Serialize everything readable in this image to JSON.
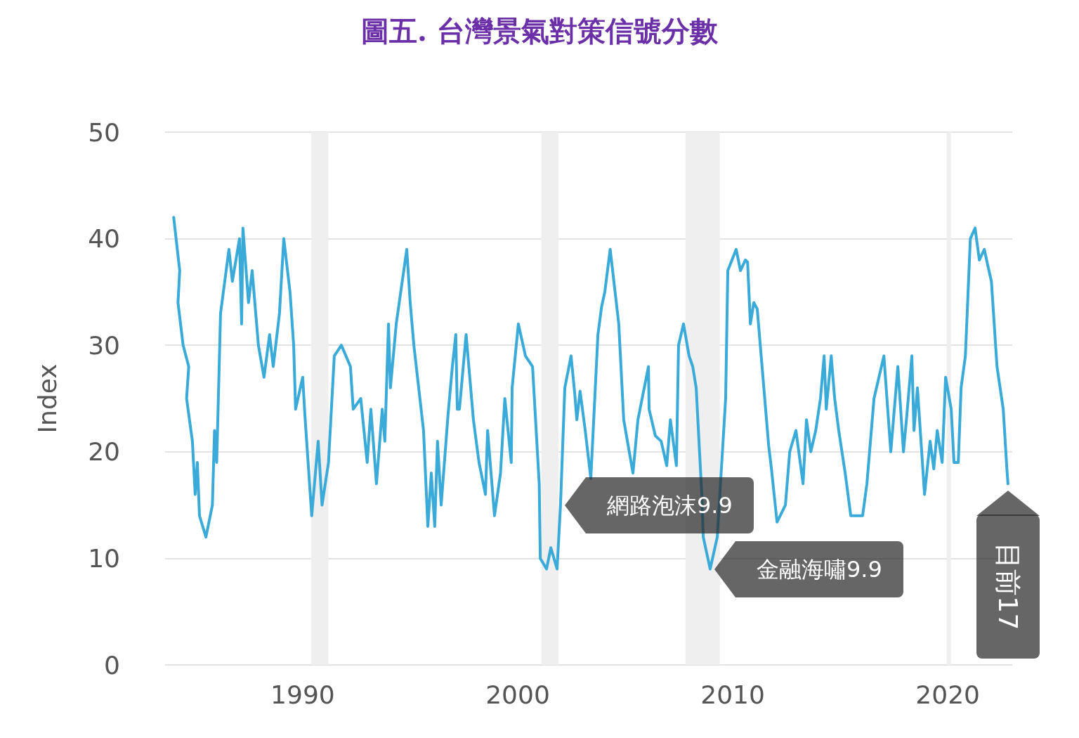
{
  "chart_data": {
    "type": "line",
    "title": "圖五. 台灣景氣對策信號分數",
    "ylabel": "Index",
    "xlim": [
      1983.6,
      2023.0
    ],
    "xticks": [
      1990,
      2000,
      2010,
      2020
    ],
    "ylim": [
      0,
      50
    ],
    "yticks": [
      0,
      10,
      20,
      30,
      40,
      50
    ],
    "grid": "y",
    "marker": "none",
    "line_style": "solid",
    "series": [
      {
        "color": "#3aaad8",
        "x": [
          1984.0,
          1984.28,
          1984.2,
          1984.44,
          1984.7,
          1984.6,
          1984.87,
          1985.0,
          1985.1,
          1985.2,
          1985.5,
          1985.8,
          1985.9,
          1986.0,
          1986.18,
          1986.57,
          1986.73,
          1987.06,
          1987.16,
          1987.22,
          1987.48,
          1987.65,
          1987.94,
          1988.2,
          1988.46,
          1988.63,
          1988.92,
          1989.12,
          1989.41,
          1989.58,
          1989.67,
          1990.0,
          1990.1,
          1990.42,
          1990.72,
          1990.9,
          1991.2,
          1991.47,
          1991.8,
          1992.22,
          1992.35,
          1992.7,
          1993.0,
          1993.17,
          1993.43,
          1993.7,
          1993.82,
          1993.99,
          1994.08,
          1994.35,
          1994.84,
          1995.0,
          1995.17,
          1995.62,
          1995.82,
          1995.98,
          1996.14,
          1996.27,
          1996.44,
          1996.76,
          1996.96,
          1997.12,
          1997.19,
          1997.29,
          1997.6,
          1997.94,
          1998.2,
          1998.5,
          1998.6,
          1998.92,
          1999.2,
          1999.4,
          1999.7,
          1999.74,
          2000.03,
          2000.36,
          2000.69,
          2001.0,
          2001.05,
          2001.34,
          2001.54,
          2001.83,
          2001.99,
          2002.19,
          2002.48,
          2002.65,
          2002.75,
          2002.9,
          2003.14,
          2003.4,
          2003.73,
          2003.9,
          2004.05,
          2004.3,
          2004.7,
          2004.93,
          2005.36,
          2005.59,
          2006.08,
          2006.11,
          2006.4,
          2006.67,
          2006.93,
          2007.1,
          2007.38,
          2007.48,
          2007.71,
          2007.97,
          2008.14,
          2008.3,
          2008.56,
          2008.63,
          2008.95,
          2009.28,
          2009.67,
          2009.77,
          2010.16,
          2010.36,
          2010.59,
          2010.69,
          2010.82,
          2010.98,
          2011.14,
          2011.67,
          2011.8,
          2012.06,
          2012.45,
          2012.65,
          2012.94,
          2013.27,
          2013.43,
          2013.63,
          2013.86,
          2014.08,
          2014.25,
          2014.35,
          2014.58,
          2014.74,
          2014.93,
          2015.23,
          2015.49,
          2016.04,
          2016.24,
          2016.57,
          2017.03,
          2017.35,
          2017.68,
          2017.94,
          2018.1,
          2018.33,
          2018.43,
          2018.59,
          2018.92,
          2019.18,
          2019.35,
          2019.51,
          2019.74,
          2019.9,
          2020.16,
          2020.29,
          2020.49,
          2020.62,
          2020.82,
          2021.05,
          2021.27,
          2021.47,
          2021.7,
          2021.86,
          2022.03,
          2022.29,
          2022.58,
          2022.75,
          2022.8
        ],
        "values": [
          42,
          37,
          34,
          30,
          28,
          25,
          21,
          16,
          19,
          14,
          12,
          15,
          22,
          19,
          33,
          39,
          36,
          40,
          32,
          41,
          34,
          37,
          30,
          27,
          31,
          28,
          33,
          40,
          35,
          30,
          24,
          27,
          23.5,
          14,
          21,
          15,
          19,
          29,
          30,
          28,
          24,
          25,
          19,
          24,
          17,
          24,
          21,
          32,
          26,
          32,
          39,
          34,
          30,
          22,
          13,
          18,
          13,
          21,
          15,
          23.5,
          28,
          31,
          24,
          24,
          31,
          23,
          19,
          16,
          22,
          14,
          18,
          25,
          19,
          26,
          32,
          29,
          28,
          17,
          10,
          9,
          11,
          9,
          15,
          26,
          29,
          25.5,
          23,
          25.7,
          22,
          17.5,
          31,
          33.6,
          35,
          39,
          32,
          23,
          18,
          23,
          28,
          24,
          21.5,
          21,
          18.7,
          23,
          18.7,
          30,
          32,
          29,
          28,
          26,
          16,
          12,
          9,
          12,
          25,
          37,
          39,
          37,
          38,
          37.8,
          32,
          34,
          33.4,
          20.6,
          18.4,
          13.4,
          15,
          20,
          22,
          17,
          23,
          20,
          22,
          25,
          29,
          24,
          29,
          25,
          22,
          18,
          14,
          14,
          17,
          25,
          29,
          20,
          28,
          20,
          23.5,
          29,
          22,
          26,
          16,
          21,
          18.4,
          22,
          19,
          27,
          24,
          19,
          19,
          26,
          29,
          40,
          41,
          38,
          39,
          37.5,
          36,
          28,
          24,
          18.4,
          17
        ]
      }
    ],
    "bands": [
      {
        "axis": "x",
        "from": 1990.4,
        "to": 1991.2,
        "color": "#efefef"
      },
      {
        "axis": "x",
        "from": 2001.1,
        "to": 2001.9,
        "color": "#efefef"
      },
      {
        "axis": "x",
        "from": 2007.8,
        "to": 2009.4,
        "color": "#efefef"
      },
      {
        "axis": "x",
        "from": 2019.95,
        "to": 2020.15,
        "color": "#efefef"
      }
    ],
    "annotations": [
      {
        "text": "網路泡沫9.9",
        "x": 2001.99,
        "y": 15
      },
      {
        "text": "金融海嘯9.9",
        "x": 2008.95,
        "y": 9
      },
      {
        "text": "目前17",
        "x": 2022.8,
        "y": 17
      }
    ]
  }
}
